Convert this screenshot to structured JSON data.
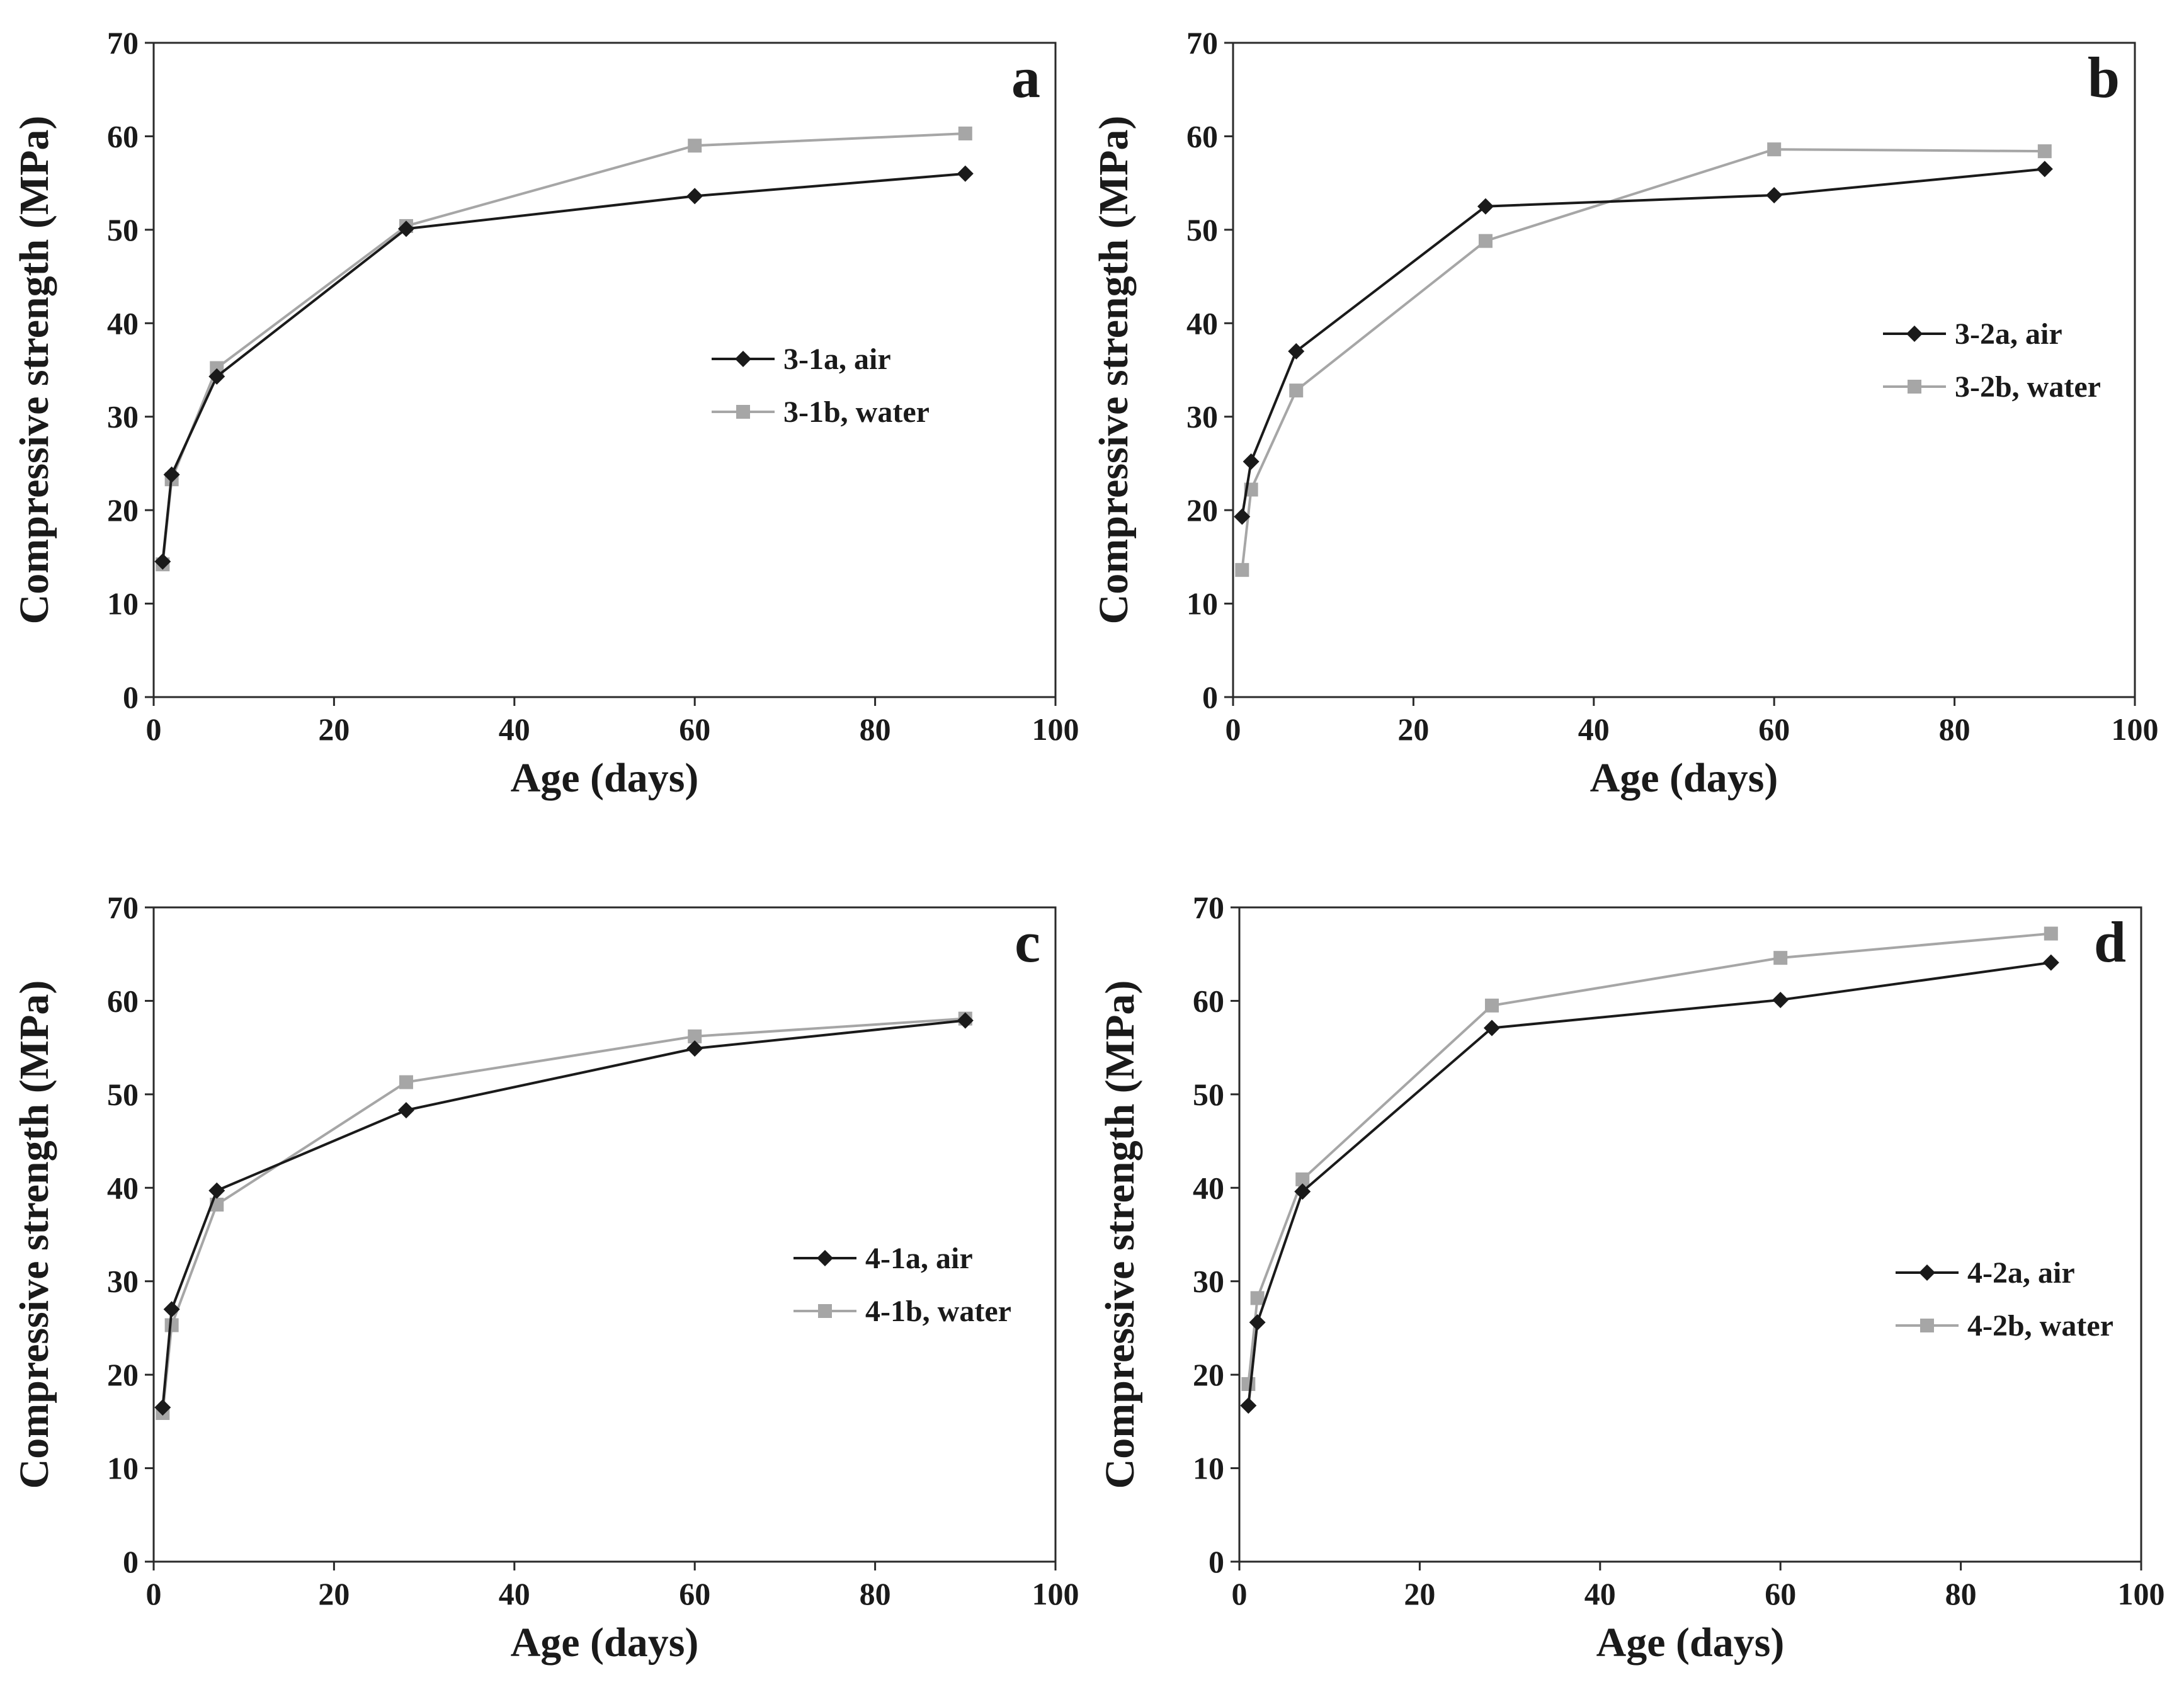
{
  "figure": {
    "series_colors": {
      "air": "#1a1a1a",
      "water": "#a6a6a6"
    }
  },
  "chart_data": [
    {
      "type": "line",
      "panel": "a",
      "xlabel": "Age (days)",
      "ylabel": "Compressive strength (MPa)",
      "xlim": [
        0,
        100
      ],
      "ylim": [
        0,
        70
      ],
      "xticks": [
        0,
        20,
        40,
        60,
        80,
        100
      ],
      "yticks": [
        0,
        10,
        20,
        30,
        40,
        50,
        60,
        70
      ],
      "legend_position": "center-right",
      "series": [
        {
          "name": "3-1a, air",
          "marker": "diamond",
          "x": [
            1,
            2,
            7,
            28,
            60,
            90
          ],
          "y": [
            14.5,
            23.8,
            34.3,
            50.1,
            53.6,
            56.0
          ]
        },
        {
          "name": "3-1b, water",
          "marker": "square",
          "x": [
            1,
            2,
            7,
            28,
            60,
            90
          ],
          "y": [
            14.2,
            23.3,
            35.2,
            50.4,
            59.0,
            60.3
          ]
        }
      ]
    },
    {
      "type": "line",
      "panel": "b",
      "xlabel": "Age (days)",
      "ylabel": "Compressive strength (MPa)",
      "xlim": [
        0,
        100
      ],
      "ylim": [
        0,
        70
      ],
      "xticks": [
        0,
        20,
        40,
        60,
        80,
        100
      ],
      "yticks": [
        0,
        10,
        20,
        30,
        40,
        50,
        60,
        70
      ],
      "legend_position": "upper-right",
      "series": [
        {
          "name": "3-2a, air",
          "marker": "diamond",
          "x": [
            1,
            2,
            7,
            28,
            60,
            90
          ],
          "y": [
            19.3,
            25.2,
            37.0,
            52.5,
            53.7,
            56.5
          ]
        },
        {
          "name": "3-2b, water",
          "marker": "square",
          "x": [
            1,
            2,
            7,
            28,
            60,
            90
          ],
          "y": [
            13.6,
            22.2,
            32.8,
            48.8,
            58.6,
            58.4
          ]
        }
      ]
    },
    {
      "type": "line",
      "panel": "c",
      "xlabel": "Age (days)",
      "ylabel": "Compressive strength (MPa)",
      "xlim": [
        0,
        100
      ],
      "ylim": [
        0,
        70
      ],
      "xticks": [
        0,
        20,
        40,
        60,
        80,
        100
      ],
      "yticks": [
        0,
        10,
        20,
        30,
        40,
        50,
        60,
        70
      ],
      "legend_position": "center-right",
      "series": [
        {
          "name": "4-1a, air",
          "marker": "diamond",
          "x": [
            1,
            2,
            7,
            28,
            60,
            90
          ],
          "y": [
            16.5,
            27.0,
            39.7,
            48.3,
            54.9,
            57.9
          ]
        },
        {
          "name": "4-1b, water",
          "marker": "square",
          "x": [
            1,
            2,
            7,
            28,
            60,
            90
          ],
          "y": [
            15.9,
            25.3,
            38.2,
            51.3,
            56.2,
            58.1
          ]
        }
      ]
    },
    {
      "type": "line",
      "panel": "d",
      "xlabel": "Age (days)",
      "ylabel": "Compressive strength (MPa)",
      "xlim": [
        0,
        100
      ],
      "ylim": [
        0,
        70
      ],
      "xticks": [
        0,
        20,
        40,
        60,
        80,
        100
      ],
      "yticks": [
        0,
        10,
        20,
        30,
        40,
        50,
        60,
        70
      ],
      "legend_position": "center-right",
      "series": [
        {
          "name": "4-2a, air",
          "marker": "diamond",
          "x": [
            1,
            2,
            7,
            28,
            60,
            90
          ],
          "y": [
            16.7,
            25.6,
            39.6,
            57.1,
            60.1,
            64.1
          ]
        },
        {
          "name": "4-2b, water",
          "marker": "square",
          "x": [
            1,
            2,
            7,
            28,
            60,
            90
          ],
          "y": [
            19.0,
            28.2,
            40.9,
            59.5,
            64.6,
            67.2
          ]
        }
      ]
    }
  ]
}
